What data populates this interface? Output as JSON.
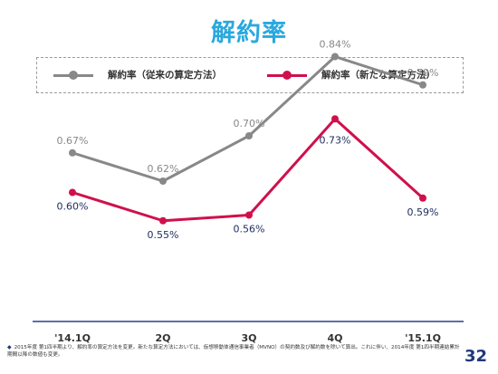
{
  "title": "解約率",
  "colors": {
    "title": "#2aa8de",
    "series_old": "#888888",
    "series_new": "#d0104c",
    "axis": "#2b3e8a"
  },
  "chart_data": {
    "type": "line",
    "categories": [
      "'14.1Q",
      "2Q",
      "3Q",
      "4Q",
      "'15.1Q"
    ],
    "series": [
      {
        "name": "解約率（従来の算定方法）",
        "values": [
          0.67,
          0.62,
          0.7,
          0.84,
          0.79
        ],
        "labels": [
          "0.67%",
          "0.62%",
          "0.70%",
          "0.84%",
          "0.79%"
        ],
        "color": "#888888"
      },
      {
        "name": "解約率（新たな算定方法）",
        "values": [
          0.6,
          0.55,
          0.56,
          0.73,
          0.59
        ],
        "labels": [
          "0.60%",
          "0.55%",
          "0.56%",
          "0.73%",
          "0.59%"
        ],
        "color": "#d0104c"
      }
    ],
    "ylim": [
      0.3,
      0.9
    ],
    "grid": false,
    "legend": "top"
  },
  "footnote": "2015年度 第1四半期より、解約率の算定方法を変更。新たな算定方法においては、仮想移動体通信事業者（MVNO）の契約数及び解約数を除いて算出。これに伴い、2014年度 第1四半期連結累計期間以降の数値も変更。",
  "page_number": "32"
}
